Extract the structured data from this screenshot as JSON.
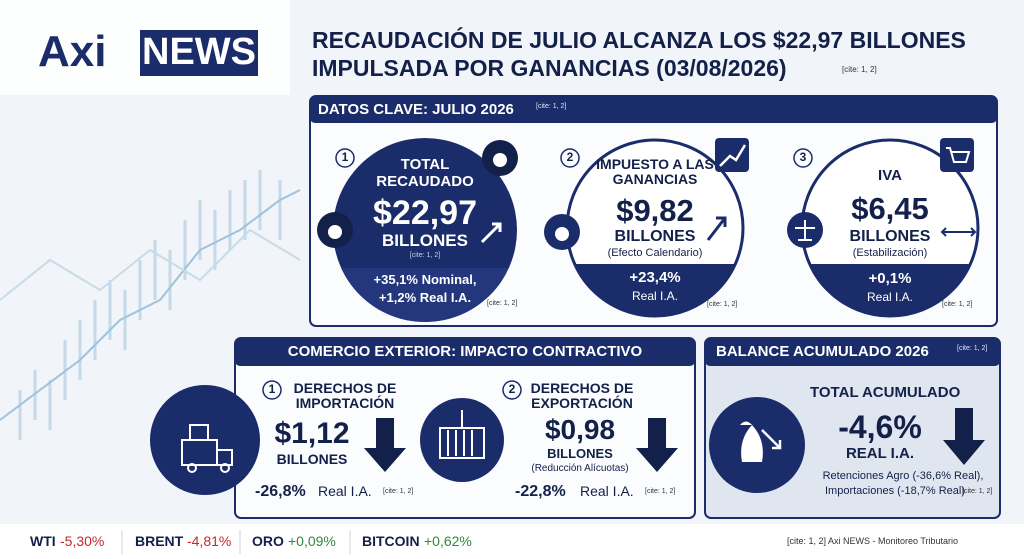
{
  "header": {
    "logo_a": "Axi",
    "logo_b": "NEWS",
    "title_line1": "RECAUDACIÓN DE JULIO ALCANZA LOS $22,97 BILLONES",
    "title_line2": "IMPULSADA POR GANANCIAS (03/08/2026)",
    "cite": "[cite: 1, 2]"
  },
  "key_data": {
    "title": "DATOS CLAVE: JULIO 2026",
    "cite": "[cite: 1, 2]",
    "items": [
      {
        "number": "1",
        "label": "TOTAL RECAUDADO",
        "value": "$22,97",
        "unit": "BILLONES",
        "inner_cite": "[cite: 1, 2]",
        "change": "+35,1% Nominal,",
        "change2": "+1,2% Real I.A.",
        "cite": "[cite: 1, 2]"
      },
      {
        "number": "2",
        "label": "IMPUESTO A LAS GANANCIAS",
        "value": "$9,82",
        "unit": "BILLONES",
        "note": "(Efecto Calendario)",
        "change": "+23,4%",
        "change2": "Real I.A.",
        "cite": "[cite: 1, 2]"
      },
      {
        "number": "3",
        "label": "IVA",
        "value": "$6,45",
        "unit": "BILLONES",
        "note": "(Estabilización)",
        "change": "+0,1%",
        "change2": "Real I.A.",
        "cite": "[cite: 1, 2]"
      }
    ]
  },
  "trade": {
    "title": "COMERCIO EXTERIOR: IMPACTO CONTRACTIVO",
    "items": [
      {
        "number": "1",
        "label": "DERECHOS DE IMPORTACIÓN",
        "value": "$1,12",
        "unit": "BILLONES",
        "change": "-26,8%",
        "change_label": "Real I.A.",
        "cite": "[cite: 1, 2]"
      },
      {
        "number": "2",
        "label": "DERECHOS DE EXPORTACIÓN",
        "value": "$0,98",
        "unit": "BILLONES",
        "note": "(Reducción Alícuotas)",
        "change": "-22,8%",
        "change_label": "Real I.A.",
        "cite": "[cite: 1, 2]"
      }
    ]
  },
  "balance": {
    "title": "BALANCE ACUMULADO 2026",
    "cite": "[cite: 1, 2]",
    "label": "TOTAL ACUMULADO",
    "value": "-4,6%",
    "unit": "REAL I.A.",
    "notes": [
      "Retenciones Agro (-36,6% Real),",
      "Importaciones (-18,7% Real)"
    ],
    "notes_cite": "[cite: 1, 2]"
  },
  "ticker": [
    {
      "name": "WTI",
      "value": "-5,30%",
      "color": "#c62828"
    },
    {
      "name": "BRENT",
      "value": "-4,81%",
      "color": "#c62828"
    },
    {
      "name": "ORO",
      "value": "+0,09%",
      "color": "#2e8b3a"
    },
    {
      "name": "BITCOIN",
      "value": "+0,62%",
      "color": "#2e8b3a"
    }
  ],
  "footer": "[cite: 1, 2] Axi NEWS - Monitoreo Tributario"
}
